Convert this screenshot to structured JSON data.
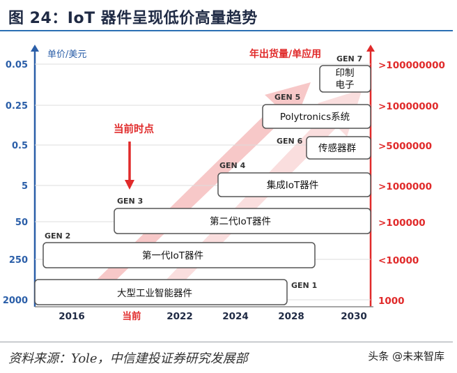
{
  "figure_title": "图 24：IoT 器件呈现低价高量趋势",
  "source": "资料来源：Yole，中信建投证券研究发展部",
  "watermark": "头条 @未来智库",
  "colors": {
    "left_axis": "#2a5ea8",
    "right_axis": "#e02a2a",
    "box_border": "#555555",
    "arrow": "#f4b6b6",
    "marker": "#e02a2a"
  },
  "chart_data": {
    "type": "timeline",
    "left_axis_label": "单价/美元",
    "right_axis_label": "年出货量/单应用",
    "left_ticks": [
      "0.05",
      "0.25",
      "0.5",
      "5",
      "50",
      "250",
      "2000"
    ],
    "right_ticks": [
      ">100000000",
      ">10000000",
      ">5000000",
      ">1000000",
      ">100000",
      "<10000",
      "1000"
    ],
    "x_ticks": [
      "2016",
      "当前",
      "2022",
      "2024",
      "2028",
      "2030"
    ],
    "current_marker": "当前时点",
    "generations": [
      {
        "gen": "GEN 1",
        "label": "大型工业智能器件"
      },
      {
        "gen": "GEN 2",
        "label": "第一代IoT器件"
      },
      {
        "gen": "GEN 3",
        "label": "第二代IoT器件"
      },
      {
        "gen": "GEN 4",
        "label": "集成IoT器件"
      },
      {
        "gen": "GEN 5",
        "label": "Polytronics系统"
      },
      {
        "gen": "GEN 6",
        "label": "传感器群"
      },
      {
        "gen": "GEN 7",
        "label": "印制电子"
      }
    ]
  }
}
